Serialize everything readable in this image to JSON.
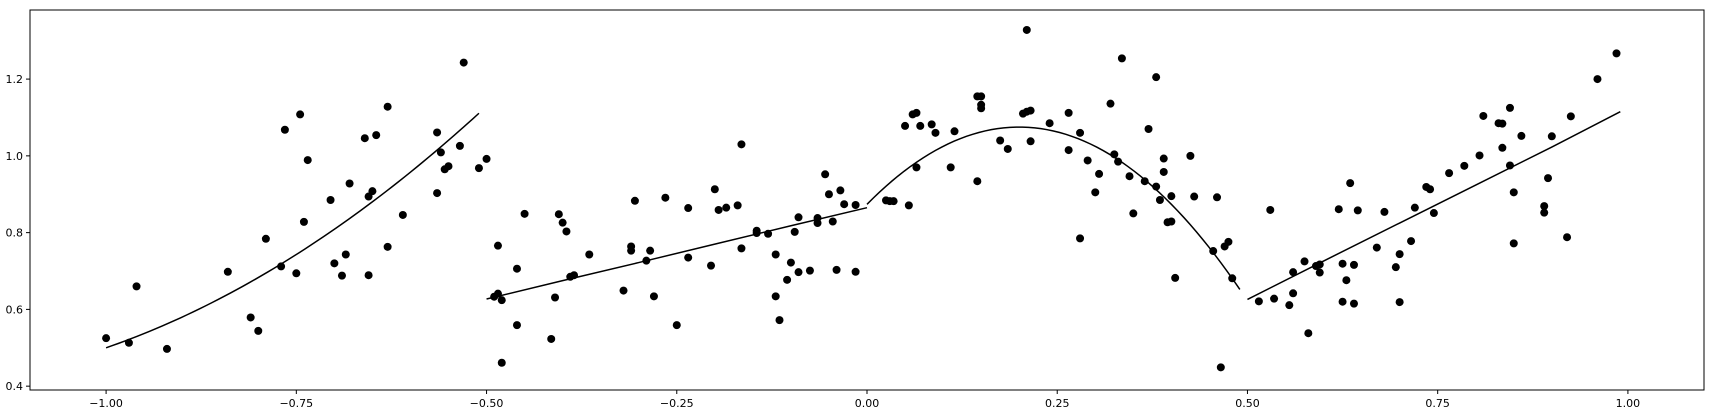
{
  "chart_data": {
    "type": "scatter",
    "xlim": [
      -1.1,
      1.1
    ],
    "ylim": [
      0.39,
      1.38
    ],
    "grid": false,
    "x_ticks": [
      -1.0,
      -0.75,
      -0.5,
      -0.25,
      0.0,
      0.25,
      0.5,
      0.75,
      1.0
    ],
    "x_tick_labels": [
      "−1.00",
      "−0.75",
      "−0.50",
      "−0.25",
      "0.00",
      "0.25",
      "0.50",
      "0.75",
      "1.00"
    ],
    "y_ticks": [
      0.4,
      0.6,
      0.8,
      1.0,
      1.2
    ],
    "y_tick_labels": [
      "0.4",
      "0.6",
      "0.8",
      "1.0",
      "1.2"
    ],
    "colors": {
      "points": "#000000",
      "lines": "#000000",
      "axes": "#000000"
    },
    "points": [
      [
        -1.0,
        0.525
      ],
      [
        -0.97,
        0.513
      ],
      [
        -0.96,
        0.66
      ],
      [
        -0.92,
        0.497
      ],
      [
        -0.84,
        0.698
      ],
      [
        -0.81,
        0.579
      ],
      [
        -0.8,
        0.544
      ],
      [
        -0.79,
        0.784
      ],
      [
        -0.77,
        0.712
      ],
      [
        -0.765,
        1.068
      ],
      [
        -0.75,
        0.694
      ],
      [
        -0.745,
        1.108
      ],
      [
        -0.74,
        0.828
      ],
      [
        -0.735,
        0.989
      ],
      [
        -0.705,
        0.885
      ],
      [
        -0.7,
        0.72
      ],
      [
        -0.69,
        0.688
      ],
      [
        -0.685,
        0.743
      ],
      [
        -0.68,
        0.928
      ],
      [
        -0.66,
        1.046
      ],
      [
        -0.655,
        0.689
      ],
      [
        -0.655,
        0.894
      ],
      [
        -0.65,
        0.908
      ],
      [
        -0.645,
        1.054
      ],
      [
        -0.63,
        0.763
      ],
      [
        -0.63,
        1.128
      ],
      [
        -0.61,
        0.846
      ],
      [
        -0.565,
        0.903
      ],
      [
        -0.565,
        1.061
      ],
      [
        -0.56,
        1.009
      ],
      [
        -0.555,
        0.965
      ],
      [
        -0.55,
        0.973
      ],
      [
        -0.535,
        1.026
      ],
      [
        -0.53,
        1.243
      ],
      [
        -0.51,
        0.968
      ],
      [
        -0.5,
        0.992
      ],
      [
        -0.49,
        0.633
      ],
      [
        -0.485,
        0.766
      ],
      [
        -0.485,
        0.641
      ],
      [
        -0.48,
        0.624
      ],
      [
        -0.48,
        0.461
      ],
      [
        -0.46,
        0.706
      ],
      [
        -0.46,
        0.559
      ],
      [
        -0.45,
        0.849
      ],
      [
        -0.415,
        0.523
      ],
      [
        -0.41,
        0.631
      ],
      [
        -0.405,
        0.848
      ],
      [
        -0.4,
        0.826
      ],
      [
        -0.395,
        0.803
      ],
      [
        -0.39,
        0.685
      ],
      [
        -0.385,
        0.689
      ],
      [
        -0.365,
        0.743
      ],
      [
        -0.32,
        0.649
      ],
      [
        -0.31,
        0.764
      ],
      [
        -0.31,
        0.753
      ],
      [
        -0.305,
        0.883
      ],
      [
        -0.29,
        0.727
      ],
      [
        -0.285,
        0.753
      ],
      [
        -0.28,
        0.634
      ],
      [
        -0.265,
        0.891
      ],
      [
        -0.25,
        0.559
      ],
      [
        -0.235,
        0.735
      ],
      [
        -0.235,
        0.864
      ],
      [
        -0.205,
        0.714
      ],
      [
        -0.2,
        0.913
      ],
      [
        -0.195,
        0.859
      ],
      [
        -0.185,
        0.865
      ],
      [
        -0.17,
        0.871
      ],
      [
        -0.165,
        0.759
      ],
      [
        -0.165,
        1.03
      ],
      [
        -0.145,
        0.799
      ],
      [
        -0.145,
        0.805
      ],
      [
        -0.13,
        0.797
      ],
      [
        -0.12,
        0.634
      ],
      [
        -0.12,
        0.743
      ],
      [
        -0.115,
        0.572
      ],
      [
        -0.105,
        0.677
      ],
      [
        -0.1,
        0.722
      ],
      [
        -0.095,
        0.802
      ],
      [
        -0.09,
        0.697
      ],
      [
        -0.09,
        0.84
      ],
      [
        -0.075,
        0.701
      ],
      [
        -0.065,
        0.825
      ],
      [
        -0.065,
        0.838
      ],
      [
        -0.055,
        0.952
      ],
      [
        -0.05,
        0.9
      ],
      [
        -0.045,
        0.829
      ],
      [
        -0.04,
        0.703
      ],
      [
        -0.035,
        0.91
      ],
      [
        -0.03,
        0.874
      ],
      [
        -0.015,
        0.872
      ],
      [
        -0.015,
        0.698
      ],
      [
        0.025,
        0.884
      ],
      [
        0.03,
        0.882
      ],
      [
        0.035,
        0.882
      ],
      [
        0.05,
        1.078
      ],
      [
        0.055,
        0.871
      ],
      [
        0.06,
        1.108
      ],
      [
        0.065,
        0.97
      ],
      [
        0.065,
        1.112
      ],
      [
        0.07,
        1.078
      ],
      [
        0.085,
        1.082
      ],
      [
        0.09,
        1.06
      ],
      [
        0.11,
        0.97
      ],
      [
        0.115,
        1.064
      ],
      [
        0.145,
        0.934
      ],
      [
        0.145,
        1.155
      ],
      [
        0.15,
        1.124
      ],
      [
        0.15,
        1.133
      ],
      [
        0.15,
        1.155
      ],
      [
        0.175,
        1.04
      ],
      [
        0.185,
        1.018
      ],
      [
        0.205,
        1.11
      ],
      [
        0.21,
        1.115
      ],
      [
        0.21,
        1.328
      ],
      [
        0.215,
        1.038
      ],
      [
        0.215,
        1.118
      ],
      [
        0.24,
        1.085
      ],
      [
        0.265,
        1.015
      ],
      [
        0.265,
        1.112
      ],
      [
        0.28,
        0.785
      ],
      [
        0.28,
        1.06
      ],
      [
        0.29,
        0.988
      ],
      [
        0.3,
        0.905
      ],
      [
        0.305,
        0.953
      ],
      [
        0.32,
        1.136
      ],
      [
        0.325,
        1.004
      ],
      [
        0.33,
        0.985
      ],
      [
        0.335,
        1.254
      ],
      [
        0.345,
        0.947
      ],
      [
        0.35,
        0.85
      ],
      [
        0.365,
        0.934
      ],
      [
        0.37,
        1.07
      ],
      [
        0.38,
        1.205
      ],
      [
        0.38,
        0.92
      ],
      [
        0.385,
        0.885
      ],
      [
        0.39,
        0.958
      ],
      [
        0.39,
        0.993
      ],
      [
        0.395,
        0.827
      ],
      [
        0.4,
        0.829
      ],
      [
        0.4,
        0.895
      ],
      [
        0.405,
        0.682
      ],
      [
        0.425,
        1.0
      ],
      [
        0.43,
        0.894
      ],
      [
        0.455,
        0.752
      ],
      [
        0.46,
        0.892
      ],
      [
        0.465,
        0.449
      ],
      [
        0.47,
        0.764
      ],
      [
        0.475,
        0.776
      ],
      [
        0.48,
        0.681
      ],
      [
        0.515,
        0.621
      ],
      [
        0.53,
        0.859
      ],
      [
        0.535,
        0.628
      ],
      [
        0.555,
        0.611
      ],
      [
        0.56,
        0.697
      ],
      [
        0.56,
        0.642
      ],
      [
        0.575,
        0.725
      ],
      [
        0.58,
        0.538
      ],
      [
        0.59,
        0.713
      ],
      [
        0.595,
        0.696
      ],
      [
        0.595,
        0.717
      ],
      [
        0.62,
        0.861
      ],
      [
        0.625,
        0.62
      ],
      [
        0.625,
        0.719
      ],
      [
        0.63,
        0.676
      ],
      [
        0.635,
        0.929
      ],
      [
        0.64,
        0.615
      ],
      [
        0.64,
        0.716
      ],
      [
        0.645,
        0.858
      ],
      [
        0.67,
        0.761
      ],
      [
        0.68,
        0.854
      ],
      [
        0.695,
        0.71
      ],
      [
        0.7,
        0.619
      ],
      [
        0.7,
        0.744
      ],
      [
        0.715,
        0.778
      ],
      [
        0.72,
        0.865
      ],
      [
        0.735,
        0.919
      ],
      [
        0.74,
        0.913
      ],
      [
        0.745,
        0.851
      ],
      [
        0.765,
        0.955
      ],
      [
        0.785,
        0.974
      ],
      [
        0.805,
        1.001
      ],
      [
        0.81,
        1.104
      ],
      [
        0.83,
        1.085
      ],
      [
        0.835,
        1.084
      ],
      [
        0.835,
        1.021
      ],
      [
        0.845,
        1.125
      ],
      [
        0.845,
        0.975
      ],
      [
        0.85,
        0.772
      ],
      [
        0.85,
        0.905
      ],
      [
        0.86,
        1.052
      ],
      [
        0.89,
        0.869
      ],
      [
        0.89,
        0.852
      ],
      [
        0.895,
        0.942
      ],
      [
        0.9,
        1.051
      ],
      [
        0.92,
        0.788
      ],
      [
        0.925,
        1.103
      ],
      [
        0.96,
        1.2
      ],
      [
        0.985,
        1.267
      ]
    ],
    "fit_lines": [
      {
        "x": [
          -1.0,
          -0.9,
          -0.8,
          -0.7,
          -0.6,
          -0.51
        ],
        "y": [
          0.5,
          0.586,
          0.689,
          0.812,
          0.954,
          1.111
        ]
      },
      {
        "x": [
          -0.5,
          -0.4,
          -0.3,
          -0.2,
          -0.1,
          0.0
        ],
        "y": [
          0.627,
          0.675,
          0.722,
          0.77,
          0.818,
          0.865
        ]
      },
      {
        "x": [
          0.0,
          0.05,
          0.1,
          0.15,
          0.2,
          0.25,
          0.3,
          0.35,
          0.4,
          0.45,
          0.49
        ],
        "y": [
          0.874,
          0.962,
          1.025,
          1.062,
          1.075,
          1.062,
          1.025,
          0.962,
          0.874,
          0.762,
          0.655
        ]
      },
      {
        "x": [
          0.5,
          0.6,
          0.7,
          0.8,
          0.9,
          0.99
        ],
        "y": [
          0.626,
          0.726,
          0.825,
          0.924,
          1.023,
          1.115
        ]
      }
    ]
  }
}
